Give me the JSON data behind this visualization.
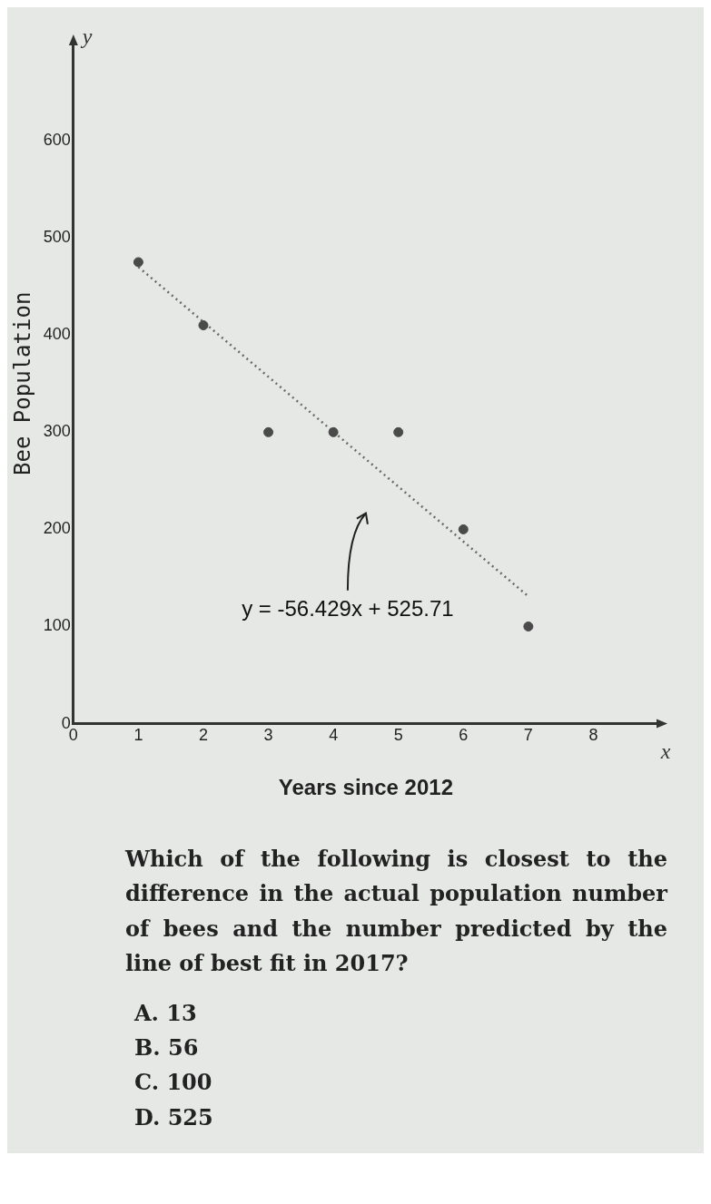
{
  "chart_data": {
    "type": "scatter",
    "xlabel": "Years since 2012",
    "ylabel": "Bee Population",
    "x": [
      1,
      2,
      3,
      4,
      5,
      6,
      7
    ],
    "series": [
      {
        "color": "#4a4a4a",
        "values": [
          475,
          410,
          300,
          300,
          300,
          200,
          100
        ],
        "marker": "circle"
      },
      {
        "type": "line",
        "color": "#6a6a6a",
        "x": [
          1,
          7
        ],
        "values": [
          470,
          131
        ],
        "line_style": "dotted",
        "marker": "none"
      }
    ],
    "xlim": [
      0,
      9
    ],
    "xticks": [
      0,
      1,
      2,
      3,
      4,
      5,
      6,
      7,
      8
    ],
    "ylim": [
      0,
      700
    ],
    "yticks": [
      0,
      100,
      200,
      300,
      400,
      500,
      600
    ],
    "grid": false,
    "legend": false,
    "annotations": [
      "y",
      "x",
      "y = -56.429x + 525.71",
      "Which of the following is closest to the difference in the actual population number of bees and the number predicted by the line of best fit in 2017?",
      "A.  13",
      "B.  56",
      "C.  100",
      "D.  525"
    ]
  }
}
